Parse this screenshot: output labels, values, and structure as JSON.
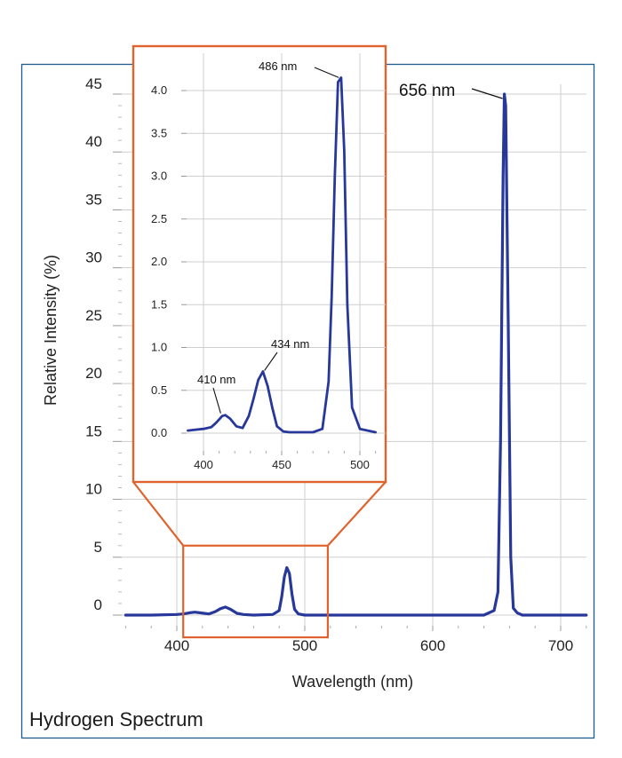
{
  "chart_data": [
    {
      "type": "line",
      "title": "Hydrogen Spectrum",
      "xlabel": "Wavelength (nm)",
      "ylabel": "Relative Intensity (%)",
      "xlim": [
        360,
        720
      ],
      "ylim": [
        -1,
        47
      ],
      "x_ticks": [
        400,
        500,
        600,
        700
      ],
      "y_ticks": [
        0,
        5,
        10,
        15,
        20,
        25,
        30,
        35,
        40,
        45
      ],
      "grid": true,
      "series": [
        {
          "x": [
            360,
            380,
            400,
            405,
            410,
            414,
            418,
            425,
            430,
            434,
            438,
            442,
            447,
            452,
            460,
            475,
            480,
            482,
            484,
            486,
            488,
            490,
            492,
            495,
            500,
            520,
            560,
            600,
            640,
            648,
            651,
            653,
            655,
            656,
            657,
            659,
            661,
            663,
            666,
            670,
            690,
            720
          ],
          "y": [
            0,
            0,
            0.05,
            0.1,
            0.2,
            0.25,
            0.2,
            0.1,
            0.3,
            0.55,
            0.7,
            0.5,
            0.15,
            0.05,
            0,
            0.05,
            0.4,
            1.6,
            3.3,
            4.1,
            3.6,
            1.8,
            0.5,
            0.1,
            0,
            0,
            0,
            0,
            0,
            0.4,
            2,
            15,
            38,
            45,
            44,
            25,
            5,
            0.6,
            0.2,
            0,
            0,
            0
          ]
        }
      ],
      "annotations": [
        {
          "text": "656 nm",
          "x": 656,
          "y": 45
        }
      ],
      "zoom_region": {
        "x": [
          405,
          518
        ],
        "y": [
          -1,
          6
        ]
      }
    },
    {
      "type": "line",
      "title": "",
      "xlim": [
        390,
        510
      ],
      "ylim": [
        -0.15,
        4.3
      ],
      "x_ticks": [
        400,
        450,
        500
      ],
      "y_ticks": [
        0.0,
        0.5,
        1.0,
        1.5,
        2.0,
        2.5,
        3.0,
        3.5,
        4.0
      ],
      "y_tick_labels": [
        "0.0",
        "0.5",
        "1.0",
        "1.5",
        "2.0",
        "2.5",
        "3.0",
        "3.5",
        "4.0"
      ],
      "grid": true,
      "series": [
        {
          "x": [
            390,
            395,
            400,
            405,
            408,
            412,
            414,
            417,
            421,
            425,
            429,
            432,
            435,
            438,
            441,
            444,
            447,
            451,
            455,
            470,
            476,
            480,
            482,
            484,
            486,
            488,
            490,
            492,
            495,
            500,
            505,
            510
          ],
          "y": [
            0.03,
            0.04,
            0.05,
            0.07,
            0.12,
            0.2,
            0.21,
            0.17,
            0.08,
            0.06,
            0.2,
            0.4,
            0.62,
            0.72,
            0.55,
            0.3,
            0.08,
            0.02,
            0.01,
            0.01,
            0.05,
            0.6,
            1.6,
            3.0,
            4.1,
            4.15,
            3.3,
            1.5,
            0.3,
            0.05,
            0.03,
            0.01
          ]
        }
      ],
      "annotations": [
        {
          "text": "410 nm",
          "x": 411,
          "y": 0.2
        },
        {
          "text": "434 nm",
          "x": 439,
          "y": 0.7
        },
        {
          "text": "486 nm",
          "x": 486.5,
          "y": 4.12
        }
      ]
    }
  ],
  "colors": {
    "series": "#27389a",
    "frame": "#1f5a8e",
    "highlight": "#e0622c",
    "grid": "#cfcfcf"
  }
}
